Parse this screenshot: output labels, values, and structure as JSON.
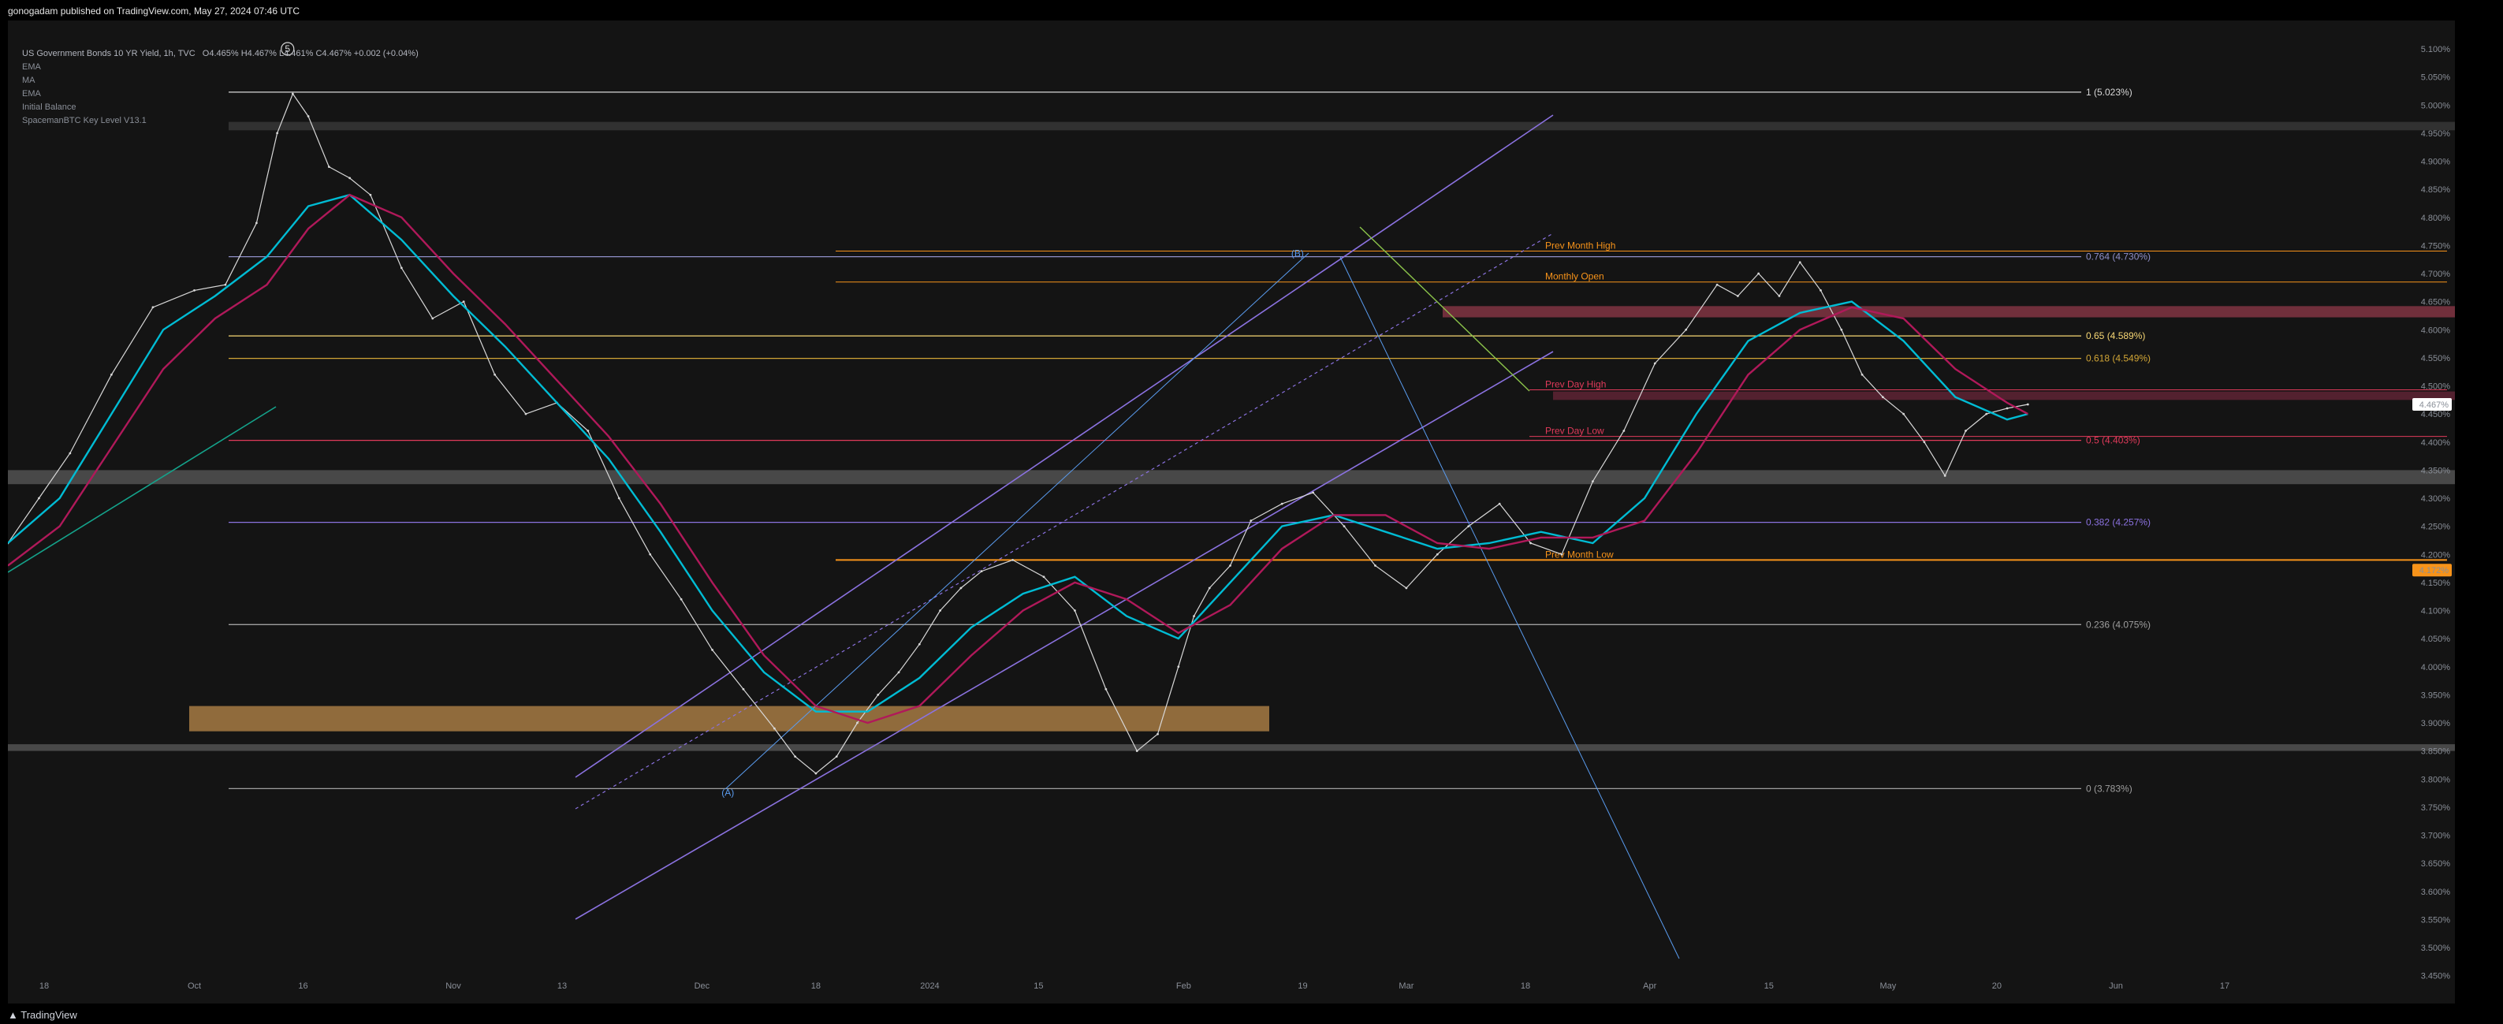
{
  "header": {
    "published": "gonogadam published on TradingView.com, May 27, 2024 07:46 UTC"
  },
  "legend": {
    "symbol_line": "US Government Bonds 10 YR Yield, 1h, TVC",
    "ohlc": "O4.465%  H4.467%  L4.461%  C4.467%  +0.002 (+0.04%)",
    "indicators": [
      "EMA",
      "MA",
      "EMA",
      "Initial Balance",
      "SpacemanBTC Key Level V13.1"
    ]
  },
  "footer": {
    "brand": "TradingView"
  },
  "chart_data": {
    "type": "line",
    "title": "US Government Bonds 10 YR Yield, 1h, TVC",
    "xlabel": "",
    "ylabel": "",
    "ylim": [
      3.41,
      5.13
    ],
    "y_ticks": [
      "5.100%",
      "5.050%",
      "5.000%",
      "4.950%",
      "4.900%",
      "4.850%",
      "4.800%",
      "4.750%",
      "4.700%",
      "4.650%",
      "4.600%",
      "4.550%",
      "4.500%",
      "4.450%",
      "4.400%",
      "4.350%",
      "4.300%",
      "4.250%",
      "4.200%",
      "4.150%",
      "4.100%",
      "4.050%",
      "4.000%",
      "3.950%",
      "3.900%",
      "3.850%",
      "3.800%",
      "3.750%",
      "3.700%",
      "3.650%",
      "3.600%",
      "3.550%",
      "3.500%",
      "3.450%"
    ],
    "x_ticks": [
      "18",
      "Oct",
      "16",
      "Nov",
      "13",
      "Dec",
      "18",
      "2024",
      "15",
      "Feb",
      "19",
      "Mar",
      "18",
      "Apr",
      "15",
      "May",
      "20",
      "Jun",
      "17"
    ],
    "x_tick_index": [
      7,
      36,
      57,
      86,
      107,
      134,
      156,
      178,
      199,
      227,
      250,
      270,
      293,
      317,
      340,
      363,
      384,
      407,
      428
    ],
    "price_tags": [
      {
        "value": 4.467,
        "text": "4.467%",
        "bg": "#ffffff",
        "fg": "#000000"
      },
      {
        "value": 4.172,
        "text": "4.172%",
        "bg": "#f7931a",
        "fg": "#000000"
      }
    ],
    "series": [
      {
        "name": "",
        "color": "#d8d8d8",
        "x": [
          0,
          6,
          12,
          20,
          28,
          36,
          42,
          48,
          52,
          55,
          58,
          62,
          66,
          70,
          76,
          82,
          88,
          94,
          100,
          106,
          112,
          118,
          124,
          130,
          136,
          142,
          148,
          152,
          156,
          160,
          164,
          168,
          172,
          176,
          180,
          184,
          188,
          194,
          200,
          206,
          212,
          218,
          222,
          226,
          229,
          232,
          236,
          240,
          246,
          252,
          258,
          264,
          270,
          276,
          282,
          288,
          294,
          300,
          306,
          312,
          318,
          324,
          330,
          334,
          338,
          342,
          346,
          350,
          354,
          358,
          362,
          366,
          370,
          374,
          378,
          382,
          386,
          390
        ],
        "values": [
          4.22,
          4.3,
          4.38,
          4.52,
          4.64,
          4.67,
          4.68,
          4.79,
          4.95,
          5.02,
          4.98,
          4.89,
          4.87,
          4.84,
          4.71,
          4.62,
          4.65,
          4.52,
          4.45,
          4.47,
          4.42,
          4.3,
          4.2,
          4.12,
          4.03,
          3.96,
          3.89,
          3.84,
          3.81,
          3.84,
          3.9,
          3.95,
          3.99,
          4.04,
          4.1,
          4.14,
          4.17,
          4.19,
          4.16,
          4.1,
          3.96,
          3.85,
          3.88,
          4.0,
          4.09,
          4.14,
          4.18,
          4.26,
          4.29,
          4.31,
          4.25,
          4.18,
          4.14,
          4.2,
          4.25,
          4.29,
          4.22,
          4.2,
          4.33,
          4.42,
          4.54,
          4.6,
          4.68,
          4.66,
          4.7,
          4.66,
          4.72,
          4.67,
          4.6,
          4.52,
          4.48,
          4.45,
          4.4,
          4.34,
          4.42,
          4.45,
          4.46,
          4.467
        ]
      },
      {
        "name": "",
        "color": "#00bcd4",
        "x": [
          0,
          10,
          20,
          30,
          40,
          50,
          58,
          66,
          76,
          86,
          96,
          106,
          116,
          126,
          136,
          146,
          156,
          166,
          176,
          186,
          196,
          206,
          216,
          226,
          236,
          246,
          256,
          266,
          276,
          286,
          296,
          306,
          316,
          326,
          336,
          346,
          356,
          366,
          376,
          386,
          390
        ],
        "values": [
          4.22,
          4.3,
          4.45,
          4.6,
          4.66,
          4.73,
          4.82,
          4.84,
          4.76,
          4.66,
          4.57,
          4.47,
          4.37,
          4.24,
          4.1,
          3.99,
          3.92,
          3.92,
          3.98,
          4.07,
          4.13,
          4.16,
          4.09,
          4.05,
          4.15,
          4.25,
          4.27,
          4.24,
          4.21,
          4.22,
          4.24,
          4.22,
          4.3,
          4.45,
          4.58,
          4.63,
          4.65,
          4.58,
          4.48,
          4.44,
          4.45
        ]
      },
      {
        "name": "",
        "color": "#b0195a",
        "x": [
          0,
          10,
          20,
          30,
          40,
          50,
          58,
          66,
          76,
          86,
          96,
          106,
          116,
          126,
          136,
          146,
          156,
          166,
          176,
          186,
          196,
          206,
          216,
          226,
          236,
          246,
          256,
          266,
          276,
          286,
          296,
          306,
          316,
          326,
          336,
          346,
          356,
          366,
          376,
          386,
          390
        ],
        "values": [
          4.18,
          4.25,
          4.39,
          4.53,
          4.62,
          4.68,
          4.78,
          4.84,
          4.8,
          4.7,
          4.61,
          4.51,
          4.41,
          4.29,
          4.15,
          4.02,
          3.93,
          3.9,
          3.93,
          4.02,
          4.1,
          4.15,
          4.12,
          4.06,
          4.11,
          4.21,
          4.27,
          4.27,
          4.22,
          4.21,
          4.23,
          4.23,
          4.26,
          4.38,
          4.52,
          4.6,
          4.64,
          4.62,
          4.53,
          4.47,
          4.45
        ]
      }
    ],
    "levels": [
      {
        "label": "1 (5.023%)",
        "value": 5.023,
        "color": "#d8d8d8"
      },
      {
        "label": "0.764 (4.730%)",
        "value": 4.73,
        "color": "#8f8fc8"
      },
      {
        "label": "0.65 (4.589%)",
        "value": 4.589,
        "color": "#f7d774"
      },
      {
        "label": "0.618 (4.549%)",
        "value": 4.549,
        "color": "#d1a536"
      },
      {
        "label": "0.5 (4.403%)",
        "value": 4.403,
        "color": "#e03a5a"
      },
      {
        "label": "0.382 (4.257%)",
        "value": 4.257,
        "color": "#8b72e0"
      },
      {
        "label": "0.236 (4.075%)",
        "value": 4.075,
        "color": "#9e9e9e"
      },
      {
        "label": "0 (3.783%)",
        "value": 3.783,
        "color": "#9e9e9e"
      }
    ],
    "key_levels": [
      {
        "label": "Prev Month High",
        "value": 4.74,
        "color": "#f7931a"
      },
      {
        "label": "Monthly Open",
        "value": 4.685,
        "color": "#f7931a"
      },
      {
        "label": "Prev Day High",
        "value": 4.493,
        "color": "#e03a5a"
      },
      {
        "label": "Prev Day Low",
        "value": 4.41,
        "color": "#e03a5a"
      },
      {
        "label": "Prev Month Low",
        "value": 4.19,
        "color": "#f7931a"
      }
    ],
    "wave_labels": [
      "(A)",
      "(B)"
    ],
    "annotation_symbol": "5"
  }
}
